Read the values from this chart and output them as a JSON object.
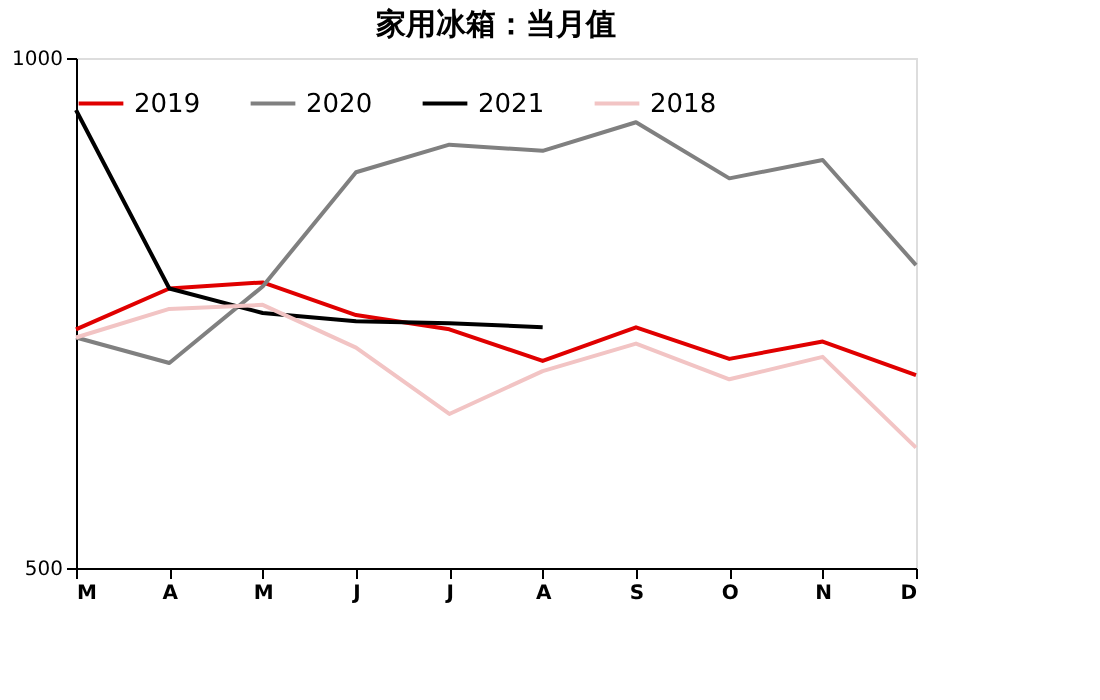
{
  "chart_data": {
    "type": "line",
    "title": "家用冰箱：当月值",
    "categories": [
      "M",
      "A",
      "M",
      "J",
      "J",
      "A",
      "S",
      "O",
      "N",
      "D"
    ],
    "ylim": [
      500,
      1000
    ],
    "yticks": [
      500,
      1000
    ],
    "legend": "top",
    "marker": "none",
    "line_style": "solid",
    "series": [
      {
        "name": "2019",
        "color": "#e00000",
        "values": [
          734,
          774,
          780,
          748,
          734,
          703,
          736,
          705,
          722,
          689
        ]
      },
      {
        "name": "2020",
        "color": "#808080",
        "values": [
          726,
          701,
          776,
          888,
          915,
          909,
          937,
          882,
          900,
          797
        ]
      },
      {
        "name": "2021",
        "color": "#000000",
        "values": [
          949,
          774,
          750,
          742,
          740,
          736,
          null,
          null,
          null,
          null
        ]
      },
      {
        "name": "2018",
        "color": "#f2c4c4",
        "values": [
          726,
          754,
          758,
          716,
          651,
          693,
          720,
          685,
          707,
          618
        ]
      }
    ]
  }
}
